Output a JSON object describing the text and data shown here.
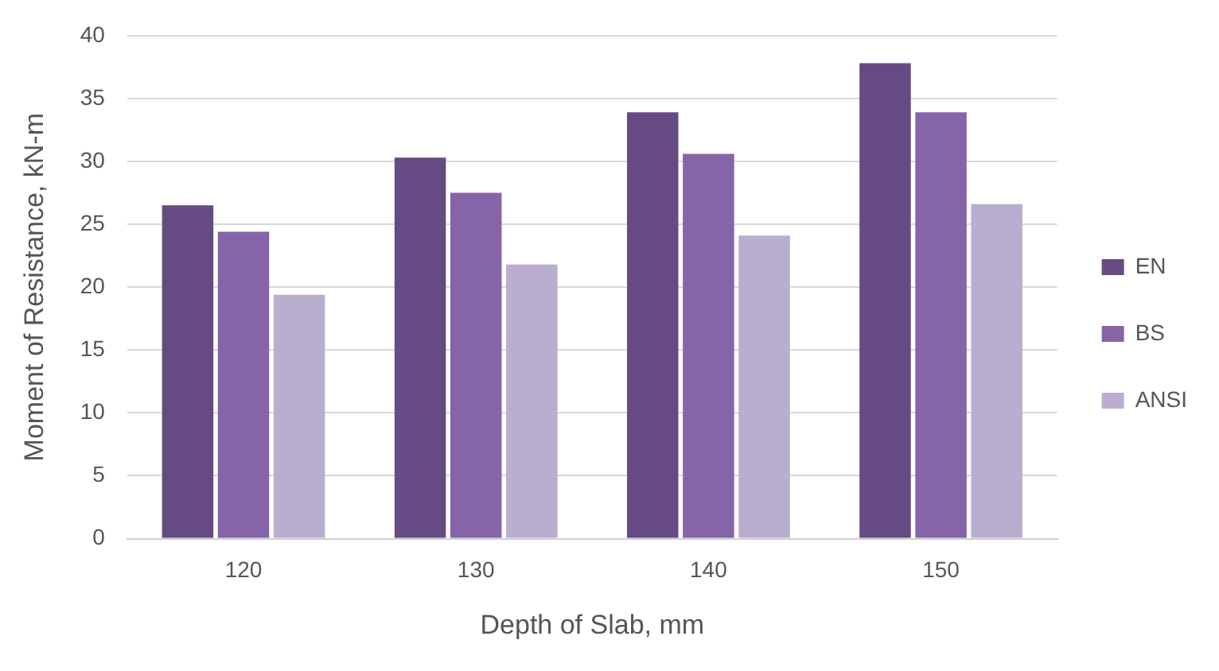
{
  "chart_data": {
    "type": "bar",
    "xlabel": "Depth of Slab, mm",
    "ylabel": "Moment of Resistance, kN-m",
    "categories": [
      "120",
      "130",
      "140",
      "150"
    ],
    "series": [
      {
        "name": "EN",
        "color": "#654a84",
        "values": [
          26.5,
          30.3,
          33.9,
          37.8
        ]
      },
      {
        "name": "BS",
        "color": "#8664a8",
        "values": [
          24.4,
          27.5,
          30.6,
          33.9
        ]
      },
      {
        "name": "ANSI",
        "color": "#b9aed0",
        "values": [
          19.4,
          21.8,
          24.1,
          26.6
        ]
      }
    ],
    "ylim": [
      0,
      40
    ],
    "yticks": [
      0,
      5,
      10,
      15,
      20,
      25,
      30,
      35,
      40
    ],
    "grid": "y",
    "legend": "right"
  }
}
